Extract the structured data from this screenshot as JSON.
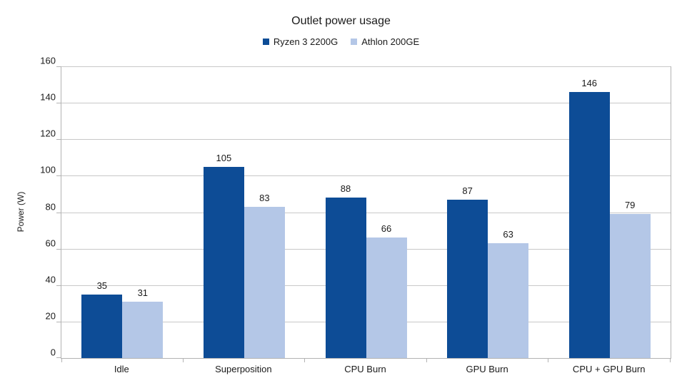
{
  "chart_data": {
    "type": "bar",
    "title": "Outlet power usage",
    "xlabel": "",
    "ylabel": "Power (W)",
    "categories": [
      "Idle",
      "Superposition",
      "CPU Burn",
      "GPU Burn",
      "CPU + GPU Burn"
    ],
    "series": [
      {
        "name": "Ryzen 3 2200G",
        "color": "#0d4c96",
        "values": [
          35,
          105,
          88,
          87,
          146
        ]
      },
      {
        "name": "Athlon 200GE",
        "color": "#b4c7e7",
        "values": [
          31,
          83,
          66,
          63,
          79
        ]
      }
    ],
    "ylim": [
      0,
      160
    ],
    "ytick_step": 20,
    "grid": true,
    "legend_position": "top",
    "value_labels": true
  },
  "colors": {
    "gridline": "#c8c8c8",
    "axis": "#b3b3b3",
    "text": "#1a1a1a",
    "background": "#ffffff"
  }
}
